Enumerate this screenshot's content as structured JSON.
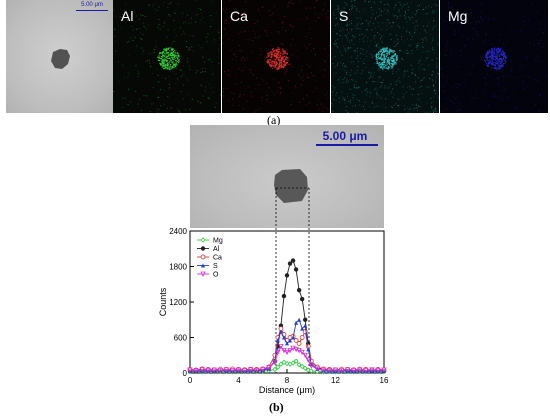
{
  "panel_a": {
    "scalebar": "5.00 μm",
    "maps": [
      {
        "label": "Al",
        "color": "#35d635"
      },
      {
        "label": "Ca",
        "color": "#e23232"
      },
      {
        "label": "S",
        "color": "#37c7c7"
      },
      {
        "label": "Mg",
        "color": "#2a2ad6"
      }
    ],
    "caption": "(a)"
  },
  "panel_b": {
    "scalebar": "5.00 μm",
    "caption": "(b)"
  },
  "chart_data": {
    "type": "line",
    "xlabel": "Distance (μm)",
    "ylabel": "Counts",
    "xlim": [
      0,
      16
    ],
    "ylim": [
      0,
      2400
    ],
    "xticks": [
      0,
      4,
      8,
      12,
      16
    ],
    "yticks": [
      0,
      600,
      1200,
      1800,
      2400
    ],
    "legend_position": "top-left",
    "x": [
      0.0,
      0.5,
      1.0,
      1.5,
      2.0,
      2.5,
      3.0,
      3.5,
      4.0,
      4.5,
      5.0,
      5.5,
      6.0,
      6.5,
      7.0,
      7.25,
      7.5,
      7.75,
      8.0,
      8.25,
      8.5,
      8.75,
      9.0,
      9.25,
      9.5,
      9.75,
      10.0,
      10.5,
      11.0,
      11.5,
      12.0,
      12.5,
      13.0,
      13.5,
      14.0,
      14.5,
      15.0,
      15.5,
      16.0
    ],
    "series": [
      {
        "name": "Mg",
        "color": "#2ecc40",
        "marker": "diamond",
        "values": [
          20,
          25,
          20,
          30,
          20,
          25,
          30,
          20,
          25,
          20,
          30,
          25,
          30,
          40,
          60,
          100,
          150,
          180,
          160,
          150,
          170,
          200,
          140,
          110,
          80,
          50,
          35,
          25,
          20,
          25,
          20,
          30,
          25,
          20,
          25,
          20,
          30,
          20,
          25
        ]
      },
      {
        "name": "Al",
        "color": "#222222",
        "marker": "circle",
        "values": [
          40,
          30,
          50,
          40,
          35,
          45,
          40,
          50,
          40,
          35,
          45,
          40,
          50,
          80,
          200,
          450,
          800,
          1300,
          1650,
          1850,
          1900,
          1750,
          1400,
          1250,
          900,
          500,
          200,
          90,
          60,
          50,
          40,
          45,
          40,
          35,
          45,
          40,
          30,
          40,
          35
        ]
      },
      {
        "name": "Ca",
        "color": "#e03030",
        "marker": "circle-open",
        "values": [
          60,
          50,
          70,
          60,
          55,
          65,
          60,
          70,
          60,
          55,
          65,
          60,
          70,
          100,
          300,
          600,
          750,
          650,
          550,
          600,
          620,
          550,
          500,
          600,
          700,
          450,
          200,
          100,
          70,
          60,
          55,
          65,
          60,
          55,
          65,
          60,
          50,
          60,
          55
        ]
      },
      {
        "name": "S",
        "color": "#1f3fd6",
        "marker": "triangle",
        "values": [
          30,
          40,
          30,
          35,
          30,
          40,
          35,
          30,
          40,
          30,
          35,
          40,
          45,
          70,
          200,
          550,
          700,
          600,
          500,
          550,
          600,
          850,
          900,
          750,
          800,
          400,
          150,
          70,
          40,
          35,
          30,
          40,
          35,
          30,
          40,
          30,
          35,
          30,
          40
        ]
      },
      {
        "name": "O",
        "color": "#d633d6",
        "marker": "triangle-down",
        "values": [
          50,
          40,
          55,
          45,
          50,
          40,
          55,
          45,
          50,
          40,
          55,
          45,
          60,
          90,
          180,
          350,
          450,
          380,
          350,
          380,
          420,
          400,
          380,
          350,
          300,
          220,
          120,
          70,
          50,
          45,
          50,
          40,
          55,
          45,
          50,
          40,
          55,
          45,
          50
        ]
      }
    ]
  }
}
